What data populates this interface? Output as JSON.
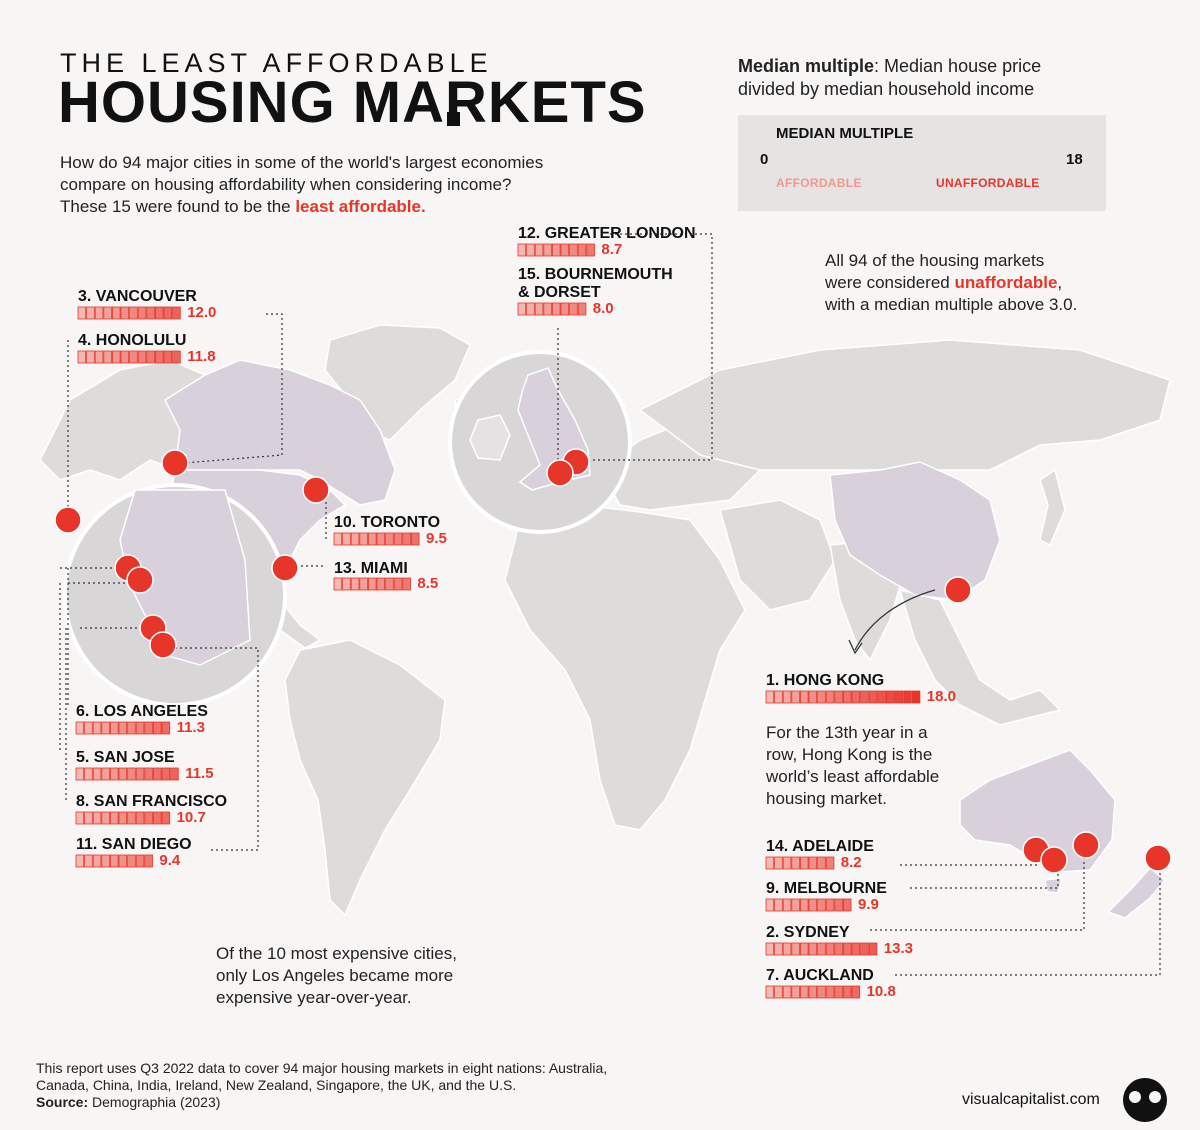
{
  "header": {
    "kicker": "THE LEAST AFFORDABLE",
    "headline": "HOUSING MARKETS",
    "intro_line1": "How do 94 major cities in some of the world's largest economies",
    "intro_line2": "compare on housing affordability when considering income?",
    "intro_line3_a": "These 15 were found to be the ",
    "intro_line3_b": "least affordable."
  },
  "definition": {
    "term": "Median multiple",
    "text_line1": ": Median house price",
    "text_line2": "divided by median household income"
  },
  "legend": {
    "title": "MEDIAN MULTIPLE",
    "min": "0",
    "max": "18",
    "low_label": "AFFORDABLE",
    "high_label": "UNAFFORDABLE",
    "scale_max": 18,
    "colors": {
      "low": "#f2b8b2",
      "high": "#e8352a",
      "outline": "#e8352a"
    }
  },
  "notes": {
    "all94_line1": "All 94 of the housing markets",
    "all94_line2_a": "were considered ",
    "all94_line2_b": "unaffordable",
    "all94_line2_c": ",",
    "all94_line3": "with a median multiple above 3.0.",
    "hk_line1": "For the 13th year in a",
    "hk_line2": "row, Hong Kong is the",
    "hk_line3": "world’s least affordable",
    "hk_line4": "housing market.",
    "expensive_line1": "Of the 10 most expensive cities,",
    "expensive_line2": "only Los Angeles became more",
    "expensive_line3": "expensive year-over-year."
  },
  "footer": {
    "line1": "This report uses Q3 2022 data to cover 94 major housing markets in eight nations: Australia,",
    "line2": "Canada, China, India, Ireland, New Zealand, Singapore, the UK, and the U.S.",
    "source_label": "Source:",
    "source_text": " Demographia (2023)",
    "brand": "visualcapitalist.com"
  },
  "chart_data": {
    "type": "bar",
    "title": "THE LEAST AFFORDABLE HOUSING MARKETS",
    "xlabel": "",
    "ylabel": "MEDIAN MULTIPLE",
    "ylim": [
      0,
      18
    ],
    "categories": [
      "Hong Kong",
      "Sydney",
      "Vancouver",
      "Honolulu",
      "San Jose",
      "Los Angeles",
      "Auckland",
      "San Francisco",
      "Melbourne",
      "Toronto",
      "San Diego",
      "Greater London",
      "Miami",
      "Adelaide",
      "Bournemouth & Dorset"
    ],
    "values": [
      18.0,
      13.3,
      12.0,
      11.8,
      11.5,
      11.3,
      10.8,
      10.7,
      9.9,
      9.5,
      9.4,
      8.7,
      8.5,
      8.2,
      8.0
    ],
    "markets": [
      {
        "name": "3. VANCOUVER",
        "value": 12.0,
        "label": "12.0"
      },
      {
        "name": "4. HONOLULU",
        "value": 11.8,
        "label": "11.8"
      },
      {
        "name": "12. GREATER LONDON",
        "value": 8.7,
        "label": "8.7"
      },
      {
        "name": "15. BOURNEMOUTH",
        "name2": "& DORSET",
        "value": 8.0,
        "label": "8.0"
      },
      {
        "name": "10. TORONTO",
        "value": 9.5,
        "label": "9.5"
      },
      {
        "name": "13. MIAMI",
        "value": 8.5,
        "label": "8.5"
      },
      {
        "name": "1. HONG KONG",
        "value": 18.0,
        "label": "18.0"
      },
      {
        "name": "6. LOS ANGELES",
        "value": 11.3,
        "label": "11.3"
      },
      {
        "name": "5. SAN JOSE",
        "value": 11.5,
        "label": "11.5"
      },
      {
        "name": "8. SAN FRANCISCO",
        "value": 10.7,
        "label": "10.7"
      },
      {
        "name": "11. SAN DIEGO",
        "value": 9.4,
        "label": "9.4"
      },
      {
        "name": "14. ADELAIDE",
        "value": 8.2,
        "label": "8.2"
      },
      {
        "name": "9. MELBOURNE",
        "value": 9.9,
        "label": "9.9"
      },
      {
        "name": "2. SYDNEY",
        "value": 13.3,
        "label": "13.3"
      },
      {
        "name": "7. AUCKLAND",
        "value": 10.8,
        "label": "10.8"
      }
    ]
  }
}
